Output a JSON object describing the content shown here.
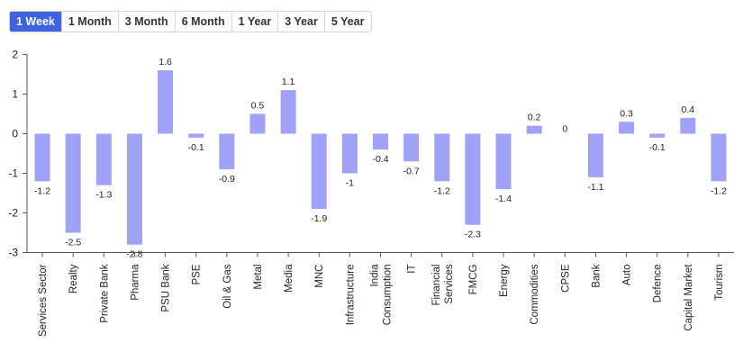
{
  "tabs": {
    "items": [
      {
        "label": "1 Week",
        "active": true
      },
      {
        "label": "1 Month",
        "active": false
      },
      {
        "label": "3 Month",
        "active": false
      },
      {
        "label": "6 Month",
        "active": false
      },
      {
        "label": "1 Year",
        "active": false
      },
      {
        "label": "3 Year",
        "active": false
      },
      {
        "label": "5 Year",
        "active": false
      }
    ]
  },
  "colors": {
    "bar": "#9fa2f7",
    "active_tab": "#3d63e0",
    "axis": "#555555"
  },
  "chart_data": {
    "type": "bar",
    "title": "",
    "xlabel": "",
    "ylabel": "",
    "ylim": [
      -3,
      2
    ],
    "yticks": [
      -3,
      -2,
      -1,
      0,
      1,
      2
    ],
    "categories": [
      [
        "Services Sector"
      ],
      [
        "Realty"
      ],
      [
        "Private Bank"
      ],
      [
        "Pharma"
      ],
      [
        "PSU Bank"
      ],
      [
        "PSE"
      ],
      [
        "Oil & Gas"
      ],
      [
        "Metal"
      ],
      [
        "Media"
      ],
      [
        "MNC"
      ],
      [
        "Infrastructure"
      ],
      [
        "India",
        "Consumption"
      ],
      [
        "IT"
      ],
      [
        "Financial",
        "Services"
      ],
      [
        "FMCG"
      ],
      [
        "Energy"
      ],
      [
        "Commodities"
      ],
      [
        "CPSE"
      ],
      [
        "Bank"
      ],
      [
        "Auto"
      ],
      [
        "Defence"
      ],
      [
        "Capital Market"
      ],
      [
        "Tourism"
      ]
    ],
    "values": [
      -1.2,
      -2.5,
      -1.3,
      -2.8,
      1.6,
      -0.1,
      -0.9,
      0.5,
      1.1,
      -1.9,
      -1,
      -0.4,
      -0.7,
      -1.2,
      -2.3,
      -1.4,
      0.2,
      0,
      -1.1,
      0.3,
      -0.1,
      0.4,
      -1.2
    ],
    "grid": false,
    "legend": "none"
  }
}
